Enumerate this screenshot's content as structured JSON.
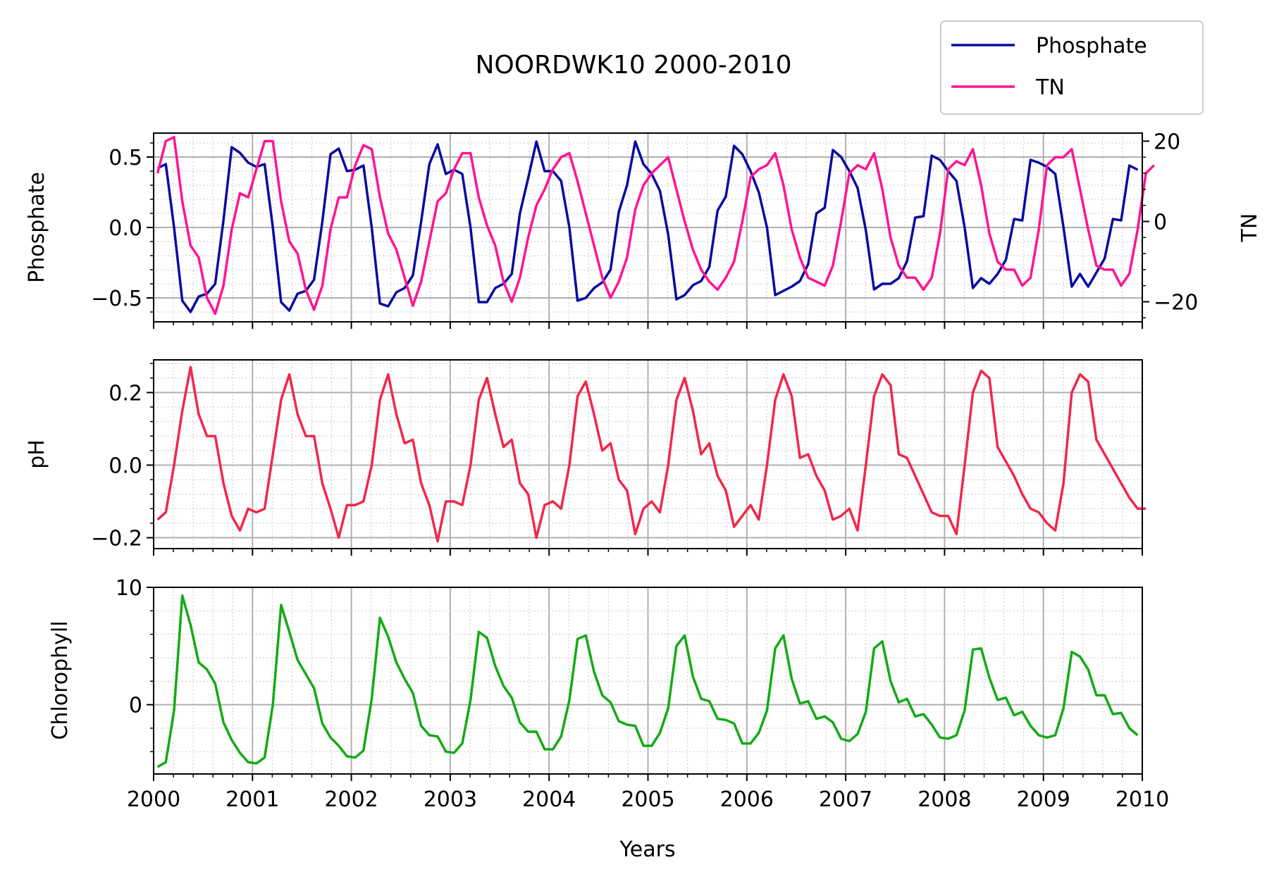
{
  "chart_data": [
    {
      "type": "line",
      "title": "NOORDWK10 2000-2010",
      "xlabel": "",
      "ylabel": "Phosphate",
      "y2label": "TN",
      "xlim": [
        2000,
        2010
      ],
      "ylim": [
        -0.67,
        0.67
      ],
      "y2lim": [
        -25,
        22
      ],
      "yticks": [
        -0.5,
        0.0,
        0.5
      ],
      "ytick_labels": [
        "−0.5",
        "0.0",
        "0.5"
      ],
      "y2ticks": [
        -20,
        0,
        20
      ],
      "y2tick_labels": [
        "−20",
        "0",
        "20"
      ],
      "grid": true,
      "legend": {
        "placement": "top-right",
        "entries": [
          "Phosphate",
          "TN"
        ]
      },
      "series": [
        {
          "name": "Phosphate",
          "axis": "left",
          "color": "#0a0aa0",
          "x_start": 2000.04,
          "x_step": 0.0833,
          "values": [
            0.42,
            0.45,
            0.0,
            -0.52,
            -0.6,
            -0.49,
            -0.47,
            -0.4,
            0.05,
            0.57,
            0.53,
            0.46,
            0.43,
            0.45,
            0.0,
            -0.53,
            -0.59,
            -0.47,
            -0.45,
            -0.37,
            0.04,
            0.52,
            0.56,
            0.4,
            0.41,
            0.44,
            0.0,
            -0.54,
            -0.56,
            -0.46,
            -0.43,
            -0.34,
            0.04,
            0.45,
            0.59,
            0.38,
            0.41,
            0.38,
            0.0,
            -0.53,
            -0.53,
            -0.43,
            -0.4,
            -0.33,
            0.1,
            0.35,
            0.61,
            0.4,
            0.4,
            0.33,
            0.0,
            -0.52,
            -0.5,
            -0.43,
            -0.39,
            -0.3,
            0.11,
            0.3,
            0.61,
            0.45,
            0.38,
            0.26,
            -0.05,
            -0.51,
            -0.48,
            -0.41,
            -0.38,
            -0.28,
            0.12,
            0.22,
            0.58,
            0.52,
            0.4,
            0.25,
            0.0,
            -0.48,
            -0.45,
            -0.42,
            -0.38,
            -0.26,
            0.1,
            0.14,
            0.55,
            0.5,
            0.4,
            0.28,
            -0.02,
            -0.44,
            -0.4,
            -0.4,
            -0.36,
            -0.24,
            0.07,
            0.08,
            0.51,
            0.48,
            0.4,
            0.33,
            0.0,
            -0.43,
            -0.36,
            -0.4,
            -0.33,
            -0.23,
            0.06,
            0.05,
            0.48,
            0.46,
            0.43,
            0.38,
            0.0,
            -0.42,
            -0.33,
            -0.42,
            -0.32,
            -0.22,
            0.06,
            0.05,
            0.44,
            0.41
          ]
        },
        {
          "name": "TN",
          "axis": "right",
          "color": "#ff1493",
          "x_start": 2000.04,
          "x_step": 0.0833,
          "values": [
            12,
            20,
            21,
            5,
            -6,
            -9,
            -19,
            -23,
            -16,
            -2,
            7,
            6,
            13,
            20,
            20,
            5,
            -5,
            -8,
            -17,
            -22,
            -16,
            -2,
            6,
            6,
            14,
            19,
            18,
            6,
            -3,
            -7,
            -14,
            -21,
            -15,
            -5,
            5,
            7,
            13,
            17,
            17,
            6,
            -1,
            -6,
            -15,
            -20,
            -14,
            -4,
            4,
            8,
            13,
            16,
            17,
            10,
            2,
            -6,
            -14,
            -19,
            -15,
            -9,
            3,
            9,
            12,
            14,
            16,
            8,
            0,
            -7,
            -12,
            -15,
            -17,
            -14,
            -10,
            0,
            11,
            13,
            14,
            17,
            9,
            -2,
            -9,
            -14,
            -15,
            -16,
            -11,
            0,
            12,
            14,
            13,
            17,
            8,
            -4,
            -11,
            -14,
            -14,
            -17,
            -14,
            -3,
            13,
            15,
            14,
            18,
            9,
            -3,
            -10,
            -12,
            -12,
            -16,
            -14,
            -2,
            14,
            16,
            16,
            18,
            8,
            -2,
            -11,
            -12,
            -12,
            -16,
            -13,
            -2,
            12,
            14
          ]
        }
      ]
    },
    {
      "type": "line",
      "title": "",
      "xlabel": "",
      "ylabel": "pH",
      "xlim": [
        2000,
        2010
      ],
      "ylim": [
        -0.23,
        0.29
      ],
      "yticks": [
        -0.2,
        0.0,
        0.2
      ],
      "ytick_labels": [
        "−0.2",
        "0.0",
        "0.2"
      ],
      "grid": true,
      "series": [
        {
          "name": "pH",
          "color": "#f0284a",
          "x_start": 2000.04,
          "x_step": 0.0833,
          "values": [
            -0.15,
            -0.13,
            0.0,
            0.15,
            0.27,
            0.14,
            0.08,
            0.08,
            -0.05,
            -0.14,
            -0.18,
            -0.12,
            -0.13,
            -0.12,
            0.03,
            0.18,
            0.25,
            0.14,
            0.08,
            0.08,
            -0.05,
            -0.12,
            -0.2,
            -0.11,
            -0.11,
            -0.1,
            0.0,
            0.18,
            0.25,
            0.14,
            0.06,
            0.07,
            -0.05,
            -0.11,
            -0.21,
            -0.1,
            -0.1,
            -0.11,
            0.0,
            0.18,
            0.24,
            0.14,
            0.05,
            0.07,
            -0.05,
            -0.08,
            -0.2,
            -0.11,
            -0.1,
            -0.12,
            0.0,
            0.19,
            0.23,
            0.14,
            0.04,
            0.06,
            -0.04,
            -0.07,
            -0.19,
            -0.12,
            -0.1,
            -0.13,
            0.0,
            0.18,
            0.24,
            0.15,
            0.03,
            0.06,
            -0.03,
            -0.07,
            -0.17,
            -0.14,
            -0.11,
            -0.15,
            0.0,
            0.18,
            0.25,
            0.19,
            0.02,
            0.03,
            -0.03,
            -0.07,
            -0.15,
            -0.14,
            -0.12,
            -0.18,
            0.0,
            0.19,
            0.25,
            0.22,
            0.03,
            0.02,
            -0.03,
            -0.08,
            -0.13,
            -0.14,
            -0.14,
            -0.19,
            0.0,
            0.2,
            0.26,
            0.24,
            0.05,
            0.01,
            -0.03,
            -0.08,
            -0.12,
            -0.13,
            -0.16,
            -0.18,
            -0.05,
            0.2,
            0.25,
            0.23,
            0.07,
            0.03,
            -0.01,
            -0.05,
            -0.09,
            -0.12,
            -0.12
          ]
        }
      ]
    },
    {
      "type": "line",
      "title": "",
      "xlabel": "Years",
      "ylabel": "Chlorophyll",
      "xlim": [
        2000,
        2010
      ],
      "ylim": [
        -5.9,
        10
      ],
      "yticks": [
        0,
        10
      ],
      "ytick_labels": [
        "0",
        "10"
      ],
      "xticks": [
        2000,
        2001,
        2002,
        2003,
        2004,
        2005,
        2006,
        2007,
        2008,
        2009,
        2010
      ],
      "xtick_labels": [
        "2000",
        "2001",
        "2002",
        "2003",
        "2004",
        "2005",
        "2006",
        "2007",
        "2008",
        "2009",
        "2010"
      ],
      "grid": true,
      "series": [
        {
          "name": "Chlorophyll",
          "color": "#14aa14",
          "x_start": 2000.04,
          "x_step": 0.0833,
          "values": [
            -5.3,
            -4.9,
            -0.5,
            9.3,
            6.8,
            3.6,
            3.0,
            1.8,
            -1.5,
            -3.0,
            -4.1,
            -4.9,
            -5.0,
            -4.5,
            0.0,
            8.5,
            6.2,
            3.8,
            2.6,
            1.4,
            -1.6,
            -2.8,
            -3.5,
            -4.4,
            -4.5,
            -3.9,
            0.5,
            7.4,
            5.8,
            3.6,
            2.2,
            1.0,
            -1.8,
            -2.6,
            -2.7,
            -4.0,
            -4.1,
            -3.3,
            0.4,
            6.2,
            5.7,
            3.3,
            1.6,
            0.6,
            -1.5,
            -2.3,
            -2.3,
            -3.8,
            -3.8,
            -2.7,
            0.4,
            5.6,
            5.9,
            2.8,
            0.8,
            0.2,
            -1.4,
            -1.7,
            -1.8,
            -3.5,
            -3.5,
            -2.4,
            -0.3,
            5.0,
            5.9,
            2.4,
            0.5,
            0.3,
            -1.2,
            -1.3,
            -1.6,
            -3.3,
            -3.3,
            -2.4,
            -0.5,
            4.8,
            5.9,
            2.2,
            0.1,
            0.3,
            -1.2,
            -1.0,
            -1.5,
            -2.9,
            -3.1,
            -2.5,
            -0.6,
            4.8,
            5.4,
            2.0,
            0.2,
            0.5,
            -1.0,
            -0.8,
            -1.7,
            -2.8,
            -2.9,
            -2.6,
            -0.5,
            4.7,
            4.8,
            2.3,
            0.4,
            0.6,
            -0.9,
            -0.6,
            -1.8,
            -2.6,
            -2.8,
            -2.6,
            -0.3,
            4.5,
            4.1,
            3.0,
            0.8,
            0.8,
            -0.8,
            -0.7,
            -2.0,
            -2.6
          ]
        }
      ]
    }
  ]
}
